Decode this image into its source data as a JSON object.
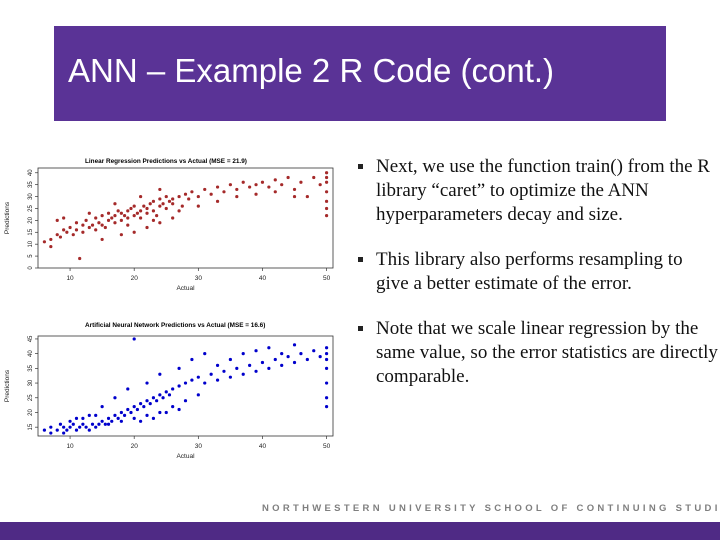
{
  "slide": {
    "title": "ANN – Example 2 R Code (cont.)",
    "footer": "NORTHWESTERN UNIVERSITY SCHOOL OF CONTINUING STUDIES"
  },
  "colors": {
    "title_bg": "#5a3396",
    "footer_bar": "#4f2a85",
    "lr_points": "#a52a2a",
    "ann_points": "#0000cc"
  },
  "bullets": [
    "Next, we use the function train() from the R library “caret” to optimize the ANN hyperparameters decay and size.",
    "This library also performs resampling to give a better estimate of the error.",
    "Note that we scale linear regression by the same value, so the error statistics are directly comparable."
  ],
  "chart_data": [
    {
      "type": "scatter",
      "title": "Linear Regression Predictions vs Actual (MSE = 21.9)",
      "xlabel": "Actual",
      "ylabel": "Predictions",
      "xticks": [
        "10",
        "20",
        "30",
        "40",
        "50"
      ],
      "yticks": [
        "0",
        "5",
        "10",
        "15",
        "20",
        "25",
        "30",
        "35",
        "40"
      ],
      "xlim": [
        5,
        51
      ],
      "ylim": [
        0,
        42
      ],
      "color": "#a52a2a",
      "points": [
        [
          11.5,
          4
        ],
        [
          7,
          9
        ],
        [
          6,
          11
        ],
        [
          7,
          12
        ],
        [
          8,
          14
        ],
        [
          8.5,
          13
        ],
        [
          9,
          16
        ],
        [
          9.5,
          15
        ],
        [
          10,
          17
        ],
        [
          10.5,
          14
        ],
        [
          11,
          16
        ],
        [
          11,
          19
        ],
        [
          12,
          15
        ],
        [
          12,
          18
        ],
        [
          12.5,
          20
        ],
        [
          13,
          17
        ],
        [
          13.5,
          18
        ],
        [
          14,
          16
        ],
        [
          14,
          21
        ],
        [
          14.5,
          19
        ],
        [
          15,
          18
        ],
        [
          15,
          22
        ],
        [
          15.5,
          17
        ],
        [
          16,
          20
        ],
        [
          16,
          23
        ],
        [
          16.5,
          21
        ],
        [
          17,
          19
        ],
        [
          17,
          22
        ],
        [
          17.5,
          24
        ],
        [
          18,
          20
        ],
        [
          18,
          23
        ],
        [
          18.5,
          22
        ],
        [
          19,
          21
        ],
        [
          19,
          24
        ],
        [
          19.5,
          25
        ],
        [
          20,
          22
        ],
        [
          20,
          26
        ],
        [
          20.5,
          23
        ],
        [
          21,
          21
        ],
        [
          21,
          24
        ],
        [
          21.5,
          26
        ],
        [
          22,
          23
        ],
        [
          22,
          25
        ],
        [
          22.5,
          27
        ],
        [
          23,
          24
        ],
        [
          23,
          28
        ],
        [
          23.5,
          22
        ],
        [
          24,
          26
        ],
        [
          24,
          29
        ],
        [
          24.5,
          27
        ],
        [
          25,
          25
        ],
        [
          25,
          30
        ],
        [
          25.5,
          28
        ],
        [
          26,
          27
        ],
        [
          26,
          29
        ],
        [
          27,
          30
        ],
        [
          27.5,
          26
        ],
        [
          28,
          31
        ],
        [
          28.5,
          29
        ],
        [
          29,
          32
        ],
        [
          30,
          30
        ],
        [
          31,
          33
        ],
        [
          32,
          31
        ],
        [
          33,
          34
        ],
        [
          34,
          32
        ],
        [
          35,
          35
        ],
        [
          36,
          33
        ],
        [
          37,
          36
        ],
        [
          38,
          34
        ],
        [
          39,
          35
        ],
        [
          40,
          36
        ],
        [
          41,
          34
        ],
        [
          42,
          37
        ],
        [
          43,
          35
        ],
        [
          44,
          38
        ],
        [
          45,
          33
        ],
        [
          46,
          36
        ],
        [
          47,
          30
        ],
        [
          48,
          38
        ],
        [
          49,
          35
        ],
        [
          50,
          40
        ],
        [
          50,
          38
        ],
        [
          50,
          36
        ],
        [
          50,
          32
        ],
        [
          50,
          28
        ],
        [
          50,
          25
        ],
        [
          50,
          22
        ],
        [
          15,
          12
        ],
        [
          18,
          14
        ],
        [
          20,
          15
        ],
        [
          22,
          17
        ],
        [
          24,
          19
        ],
        [
          26,
          21
        ],
        [
          13,
          23
        ],
        [
          17,
          27
        ],
        [
          21,
          30
        ],
        [
          24,
          33
        ],
        [
          8,
          20
        ],
        [
          9,
          21
        ],
        [
          19,
          18
        ],
        [
          23,
          20
        ],
        [
          27,
          24
        ],
        [
          30,
          26
        ],
        [
          33,
          28
        ],
        [
          36,
          30
        ],
        [
          39,
          31
        ],
        [
          42,
          32
        ],
        [
          45,
          30
        ]
      ]
    },
    {
      "type": "scatter",
      "title": "Artificial Neural Network Predictions vs Actual (MSE = 16.6)",
      "xlabel": "Actual",
      "ylabel": "Predictions",
      "xticks": [
        "10",
        "20",
        "30",
        "40",
        "50"
      ],
      "yticks": [
        "15",
        "20",
        "25",
        "30",
        "35",
        "40",
        "45"
      ],
      "xlim": [
        5,
        51
      ],
      "ylim": [
        12,
        46
      ],
      "color": "#0000cc",
      "points": [
        [
          6,
          14
        ],
        [
          7,
          15
        ],
        [
          8,
          14
        ],
        [
          8.5,
          16
        ],
        [
          9,
          15
        ],
        [
          9.5,
          14
        ],
        [
          10,
          15
        ],
        [
          10.5,
          16
        ],
        [
          11,
          14
        ],
        [
          11.5,
          15
        ],
        [
          12,
          16
        ],
        [
          12.5,
          15
        ],
        [
          13,
          14
        ],
        [
          13.5,
          16
        ],
        [
          14,
          15
        ],
        [
          14.5,
          16
        ],
        [
          15,
          17
        ],
        [
          15.5,
          16
        ],
        [
          16,
          18
        ],
        [
          16.5,
          17
        ],
        [
          17,
          19
        ],
        [
          17.5,
          18
        ],
        [
          18,
          20
        ],
        [
          18.5,
          19
        ],
        [
          19,
          21
        ],
        [
          19.5,
          20
        ],
        [
          20,
          22
        ],
        [
          20.5,
          21
        ],
        [
          21,
          23
        ],
        [
          21.5,
          22
        ],
        [
          22,
          24
        ],
        [
          22.5,
          23
        ],
        [
          23,
          25
        ],
        [
          23.5,
          24
        ],
        [
          24,
          26
        ],
        [
          24.5,
          25
        ],
        [
          25,
          27
        ],
        [
          25.5,
          26
        ],
        [
          26,
          28
        ],
        [
          27,
          29
        ],
        [
          28,
          30
        ],
        [
          29,
          31
        ],
        [
          30,
          32
        ],
        [
          31,
          30
        ],
        [
          32,
          33
        ],
        [
          33,
          31
        ],
        [
          34,
          34
        ],
        [
          35,
          32
        ],
        [
          36,
          35
        ],
        [
          37,
          33
        ],
        [
          38,
          36
        ],
        [
          39,
          34
        ],
        [
          40,
          37
        ],
        [
          41,
          35
        ],
        [
          42,
          38
        ],
        [
          43,
          36
        ],
        [
          44,
          39
        ],
        [
          45,
          37
        ],
        [
          46,
          40
        ],
        [
          47,
          38
        ],
        [
          48,
          41
        ],
        [
          49,
          39
        ],
        [
          50,
          42
        ],
        [
          50,
          40
        ],
        [
          50,
          38
        ],
        [
          50,
          35
        ],
        [
          50,
          30
        ],
        [
          50,
          25
        ],
        [
          50,
          22
        ],
        [
          20,
          45
        ],
        [
          24,
          33
        ],
        [
          22,
          30
        ],
        [
          19,
          28
        ],
        [
          17,
          25
        ],
        [
          15,
          22
        ],
        [
          13,
          19
        ],
        [
          11,
          18
        ],
        [
          27,
          35
        ],
        [
          29,
          38
        ],
        [
          31,
          40
        ],
        [
          33,
          36
        ],
        [
          35,
          38
        ],
        [
          37,
          40
        ],
        [
          39,
          41
        ],
        [
          41,
          42
        ],
        [
          43,
          40
        ],
        [
          45,
          43
        ],
        [
          16,
          16
        ],
        [
          18,
          17
        ],
        [
          20,
          18
        ],
        [
          22,
          19
        ],
        [
          24,
          20
        ],
        [
          26,
          22
        ],
        [
          28,
          24
        ],
        [
          30,
          26
        ],
        [
          10,
          17
        ],
        [
          12,
          18
        ],
        [
          14,
          19
        ],
        [
          9,
          13
        ],
        [
          7,
          13
        ],
        [
          21,
          17
        ],
        [
          23,
          18
        ],
        [
          25,
          20
        ],
        [
          27,
          21
        ]
      ]
    }
  ]
}
